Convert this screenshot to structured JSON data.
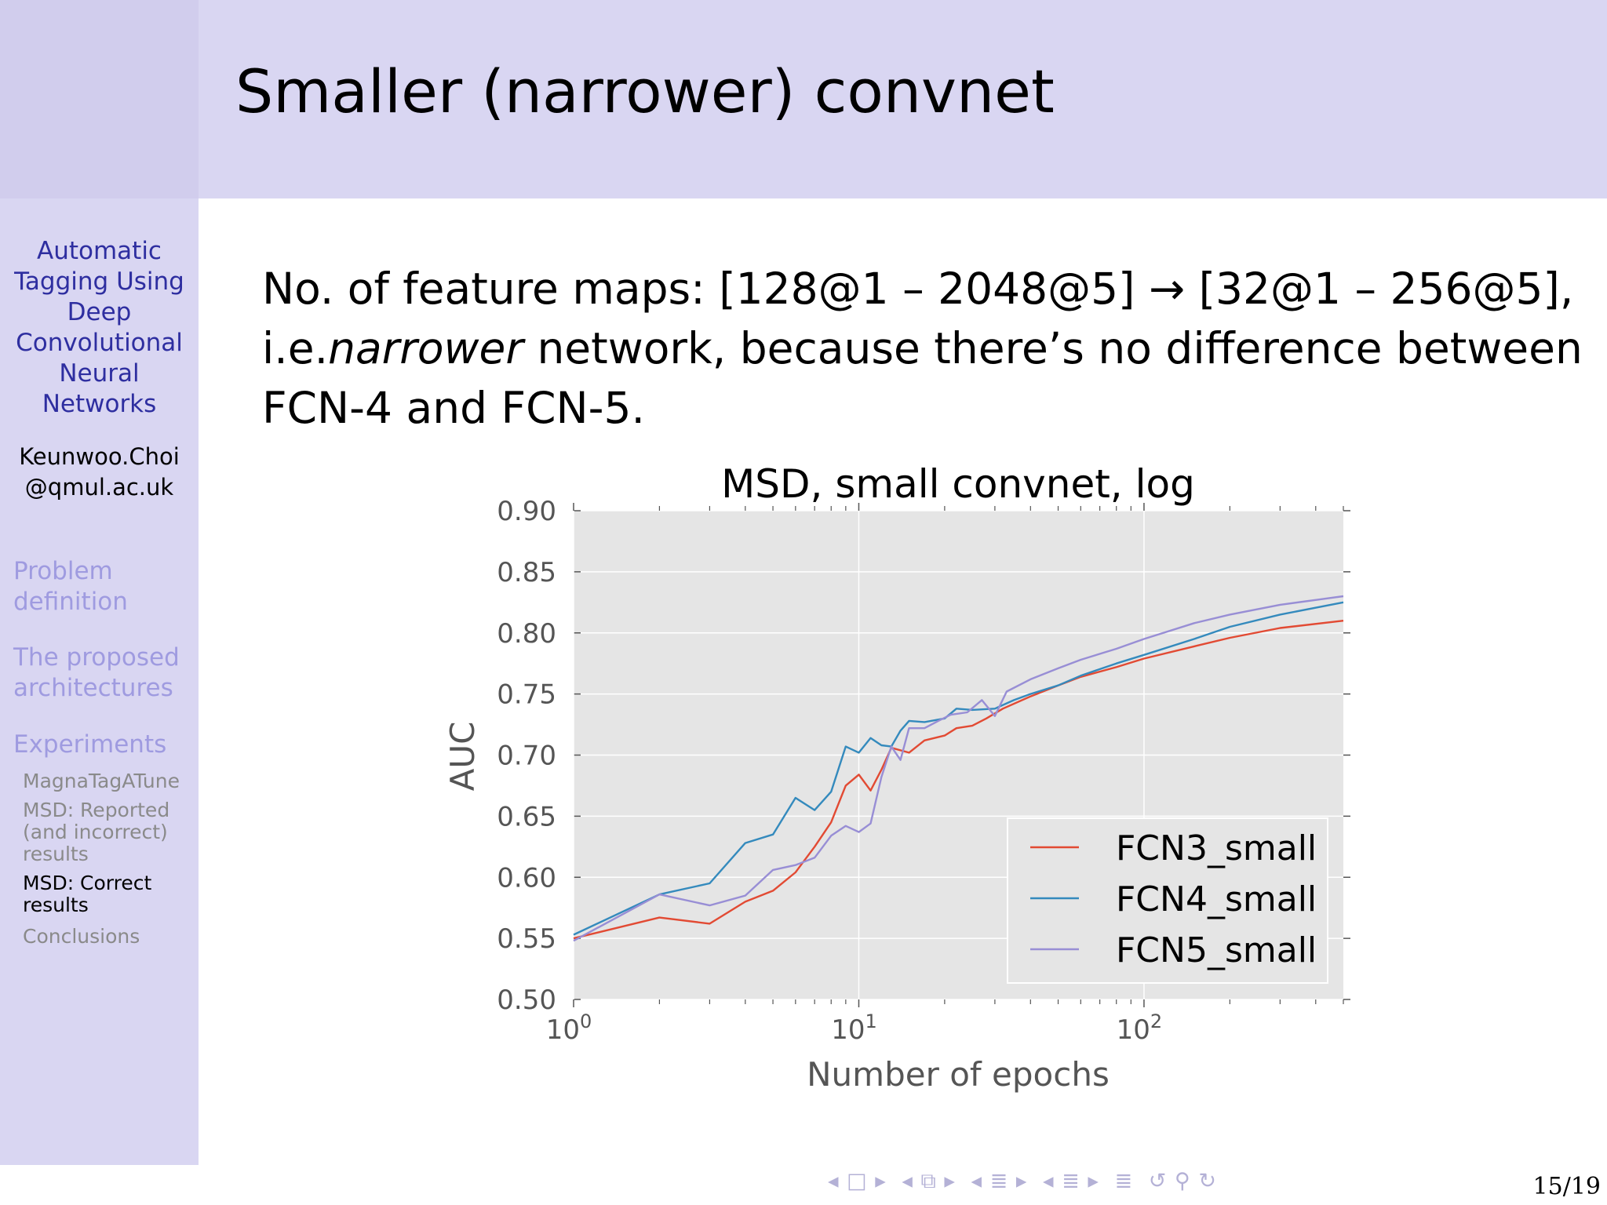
{
  "header": {
    "title": "Smaller (narrower) convnet"
  },
  "sidebar": {
    "title_lines": [
      "Automatic",
      "Tagging Using",
      "Deep",
      "Convolutional",
      "Neural",
      "Networks"
    ],
    "author_lines": [
      "Keunwoo.Choi",
      "@qmul.ac.uk"
    ],
    "sections": [
      {
        "lines": [
          "Problem",
          "definition"
        ]
      },
      {
        "lines": [
          "The proposed",
          "architectures"
        ]
      },
      {
        "lines": [
          "Experiments"
        ]
      }
    ],
    "subsections": [
      {
        "lines": [
          "MagnaTagATune"
        ]
      },
      {
        "lines": [
          "MSD: Reported",
          "(and incorrect)",
          "results"
        ]
      },
      {
        "lines": [
          "MSD: Correct",
          "results"
        ]
      },
      {
        "lines": [
          "Conclusions"
        ]
      }
    ]
  },
  "body": {
    "line1": "No. of feature maps: [128@1 – 2048@5] → [32@1 – 256@5],",
    "line2_prefix": "i.e.",
    "line2_emph": "narrower",
    "line2_suffix": " network, because there’s no difference between",
    "line3": "FCN-4 and FCN-5."
  },
  "nav": {
    "symbols": [
      "◂ □ ▸",
      "◂ ⧉ ▸",
      "◂ ≣ ▸",
      "◂ ≣ ▸",
      "≣",
      "↺ ⚲ ↻"
    ]
  },
  "footer": {
    "page": "15/19"
  },
  "chart_data": {
    "type": "line",
    "title": "MSD, small convnet, log",
    "xlabel": "Number of epochs",
    "ylabel": "AUC",
    "xscale": "log",
    "xlim": [
      1,
      500
    ],
    "ylim": [
      0.5,
      0.9
    ],
    "yticks": [
      "0.50",
      "0.55",
      "0.60",
      "0.65",
      "0.70",
      "0.75",
      "0.80",
      "0.85",
      "0.90"
    ],
    "xticks": [
      {
        "base": "10",
        "exp": "0"
      },
      {
        "base": "10",
        "exp": "1"
      },
      {
        "base": "10",
        "exp": "2"
      }
    ],
    "grid": true,
    "legend": "lower right",
    "series": [
      {
        "name": "FCN3_small",
        "color": "#e24a33",
        "points": [
          [
            1,
            0.55
          ],
          [
            2,
            0.567
          ],
          [
            3,
            0.562
          ],
          [
            4,
            0.58
          ],
          [
            5,
            0.589
          ],
          [
            6,
            0.604
          ],
          [
            7,
            0.625
          ],
          [
            8,
            0.645
          ],
          [
            9,
            0.675
          ],
          [
            10,
            0.684
          ],
          [
            11,
            0.671
          ],
          [
            12,
            0.688
          ],
          [
            13,
            0.706
          ],
          [
            15,
            0.702
          ],
          [
            17,
            0.712
          ],
          [
            20,
            0.716
          ],
          [
            22,
            0.722
          ],
          [
            25,
            0.724
          ],
          [
            28,
            0.73
          ],
          [
            32,
            0.738
          ],
          [
            40,
            0.748
          ],
          [
            50,
            0.757
          ],
          [
            60,
            0.764
          ],
          [
            80,
            0.772
          ],
          [
            100,
            0.779
          ],
          [
            150,
            0.789
          ],
          [
            200,
            0.796
          ],
          [
            300,
            0.804
          ],
          [
            500,
            0.81
          ]
        ]
      },
      {
        "name": "FCN4_small",
        "color": "#348abd",
        "points": [
          [
            1,
            0.553
          ],
          [
            2,
            0.586
          ],
          [
            3,
            0.595
          ],
          [
            4,
            0.628
          ],
          [
            5,
            0.635
          ],
          [
            6,
            0.665
          ],
          [
            7,
            0.655
          ],
          [
            8,
            0.67
          ],
          [
            9,
            0.707
          ],
          [
            10,
            0.702
          ],
          [
            11,
            0.714
          ],
          [
            12,
            0.708
          ],
          [
            13,
            0.707
          ],
          [
            14,
            0.72
          ],
          [
            15,
            0.728
          ],
          [
            17,
            0.727
          ],
          [
            20,
            0.73
          ],
          [
            22,
            0.738
          ],
          [
            25,
            0.737
          ],
          [
            30,
            0.738
          ],
          [
            35,
            0.745
          ],
          [
            40,
            0.75
          ],
          [
            50,
            0.757
          ],
          [
            60,
            0.765
          ],
          [
            80,
            0.775
          ],
          [
            100,
            0.782
          ],
          [
            150,
            0.795
          ],
          [
            200,
            0.805
          ],
          [
            300,
            0.815
          ],
          [
            500,
            0.825
          ]
        ]
      },
      {
        "name": "FCN5_small",
        "color": "#988ed5",
        "points": [
          [
            1,
            0.548
          ],
          [
            2,
            0.586
          ],
          [
            3,
            0.577
          ],
          [
            4,
            0.585
          ],
          [
            5,
            0.606
          ],
          [
            6,
            0.61
          ],
          [
            7,
            0.616
          ],
          [
            8,
            0.634
          ],
          [
            9,
            0.642
          ],
          [
            10,
            0.637
          ],
          [
            11,
            0.644
          ],
          [
            12,
            0.682
          ],
          [
            13,
            0.707
          ],
          [
            14,
            0.696
          ],
          [
            15,
            0.722
          ],
          [
            17,
            0.722
          ],
          [
            19,
            0.728
          ],
          [
            21,
            0.733
          ],
          [
            24,
            0.735
          ],
          [
            27,
            0.745
          ],
          [
            30,
            0.732
          ],
          [
            33,
            0.752
          ],
          [
            40,
            0.762
          ],
          [
            50,
            0.771
          ],
          [
            60,
            0.778
          ],
          [
            80,
            0.787
          ],
          [
            100,
            0.795
          ],
          [
            150,
            0.808
          ],
          [
            200,
            0.815
          ],
          [
            300,
            0.823
          ],
          [
            500,
            0.83
          ]
        ]
      }
    ]
  }
}
